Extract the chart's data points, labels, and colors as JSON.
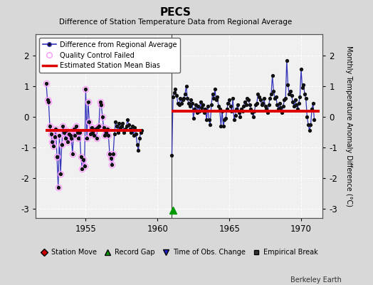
{
  "title": "PECS",
  "subtitle": "Difference of Station Temperature Data from Regional Average",
  "ylabel": "Monthly Temperature Anomaly Difference (°C)",
  "xlim": [
    1951.5,
    1971.5
  ],
  "ylim": [
    -3.3,
    2.7
  ],
  "yticks": [
    -3,
    -2,
    -1,
    0,
    1,
    2
  ],
  "xticks": [
    1955,
    1960,
    1965,
    1970
  ],
  "fig_bg_color": "#d8d8d8",
  "plot_bg_color": "#f0f0f0",
  "grid_color": "#ffffff",
  "line_color": "#3333bb",
  "marker_color": "#111111",
  "qc_color": "#ff99ff",
  "bias_color": "#dd0000",
  "gap_line_x": 1961.0,
  "segment1_bias": -0.45,
  "segment1_x_start": 1952.2,
  "segment1_x_end": 1958.9,
  "segment2_bias": 0.18,
  "segment2_x_start": 1961.0,
  "segment2_x_end": 1971.3,
  "record_gap_x": 1961.08,
  "record_gap_y": -3.05,
  "watermark": "Berkeley Earth",
  "segment1_data": [
    [
      1952.25,
      1.1
    ],
    [
      1952.333,
      0.55
    ],
    [
      1952.417,
      0.5
    ],
    [
      1952.5,
      -0.3
    ],
    [
      1952.583,
      -0.55
    ],
    [
      1952.667,
      -0.8
    ],
    [
      1952.75,
      -0.95
    ],
    [
      1952.833,
      -0.65
    ],
    [
      1952.917,
      -0.4
    ],
    [
      1953.0,
      -1.3
    ],
    [
      1953.083,
      -2.3
    ],
    [
      1953.167,
      -0.6
    ],
    [
      1953.25,
      -1.85
    ],
    [
      1953.333,
      -0.9
    ],
    [
      1953.417,
      -0.3
    ],
    [
      1953.5,
      -0.5
    ],
    [
      1953.583,
      -0.7
    ],
    [
      1953.667,
      -0.45
    ],
    [
      1953.75,
      -0.8
    ],
    [
      1953.833,
      -0.55
    ],
    [
      1953.917,
      -0.6
    ],
    [
      1954.0,
      -0.7
    ],
    [
      1954.083,
      -1.2
    ],
    [
      1954.167,
      -0.4
    ],
    [
      1954.25,
      -0.6
    ],
    [
      1954.333,
      -0.3
    ],
    [
      1954.417,
      -0.5
    ],
    [
      1954.5,
      -0.7
    ],
    [
      1954.583,
      -0.5
    ],
    [
      1954.667,
      -1.3
    ],
    [
      1954.75,
      -1.7
    ],
    [
      1954.833,
      -1.4
    ],
    [
      1954.917,
      -1.6
    ],
    [
      1955.0,
      0.9
    ],
    [
      1955.083,
      -0.7
    ],
    [
      1955.167,
      0.5
    ],
    [
      1955.25,
      -0.15
    ],
    [
      1955.333,
      -0.55
    ],
    [
      1955.417,
      -0.35
    ],
    [
      1955.5,
      -0.5
    ],
    [
      1955.583,
      -0.6
    ],
    [
      1955.667,
      -0.4
    ],
    [
      1955.75,
      -0.7
    ],
    [
      1955.833,
      -0.35
    ],
    [
      1955.917,
      -0.3
    ],
    [
      1956.0,
      0.5
    ],
    [
      1956.083,
      0.4
    ],
    [
      1956.167,
      0.0
    ],
    [
      1956.25,
      -0.35
    ],
    [
      1956.333,
      -0.6
    ],
    [
      1956.417,
      -0.5
    ],
    [
      1956.5,
      -0.4
    ],
    [
      1956.583,
      -0.6
    ],
    [
      1956.667,
      -1.2
    ],
    [
      1956.75,
      -1.35
    ],
    [
      1956.833,
      -1.55
    ],
    [
      1956.917,
      -1.2
    ],
    [
      1957.0,
      -0.55
    ],
    [
      1957.083,
      -0.15
    ],
    [
      1957.167,
      -0.3
    ],
    [
      1957.25,
      -0.5
    ],
    [
      1957.333,
      -0.2
    ],
    [
      1957.417,
      -0.35
    ],
    [
      1957.5,
      -0.3
    ],
    [
      1957.583,
      -0.2
    ],
    [
      1957.667,
      -0.5
    ],
    [
      1957.75,
      -0.4
    ],
    [
      1957.833,
      -0.3
    ],
    [
      1957.917,
      -0.1
    ],
    [
      1958.0,
      -0.25
    ],
    [
      1958.083,
      -0.4
    ],
    [
      1958.167,
      -0.5
    ],
    [
      1958.25,
      -0.3
    ],
    [
      1958.333,
      -0.6
    ],
    [
      1958.417,
      -0.35
    ],
    [
      1958.5,
      -0.55
    ],
    [
      1958.583,
      -0.9
    ],
    [
      1958.667,
      -1.1
    ],
    [
      1958.75,
      -0.7
    ],
    [
      1958.833,
      -0.5
    ],
    [
      1958.917,
      -0.45
    ]
  ],
  "qc_flags_seg1": [
    1,
    1,
    1,
    1,
    1,
    1,
    1,
    1,
    1,
    1,
    1,
    1,
    1,
    1,
    1,
    1,
    1,
    1,
    1,
    1,
    1,
    1,
    1,
    1,
    1,
    1,
    1,
    1,
    1,
    1,
    1,
    1,
    1,
    1,
    1,
    1,
    1,
    1,
    1,
    1,
    1,
    1,
    1,
    1,
    1,
    1,
    1,
    1,
    1,
    1,
    1,
    1,
    1,
    1,
    1,
    1,
    1,
    0,
    0,
    0,
    0,
    0,
    0,
    0,
    0,
    0,
    0,
    0,
    0,
    0,
    0,
    0,
    0,
    0,
    0,
    0,
    0,
    0,
    0,
    0,
    0
  ],
  "segment2_data": [
    [
      1961.0,
      -1.25
    ],
    [
      1961.083,
      0.65
    ],
    [
      1961.167,
      0.8
    ],
    [
      1961.25,
      0.9
    ],
    [
      1961.333,
      0.7
    ],
    [
      1961.417,
      0.45
    ],
    [
      1961.5,
      0.4
    ],
    [
      1961.583,
      0.6
    ],
    [
      1961.667,
      0.45
    ],
    [
      1961.75,
      0.55
    ],
    [
      1961.833,
      0.6
    ],
    [
      1961.917,
      0.75
    ],
    [
      1962.0,
      1.0
    ],
    [
      1962.083,
      0.6
    ],
    [
      1962.167,
      0.45
    ],
    [
      1962.25,
      0.35
    ],
    [
      1962.333,
      0.55
    ],
    [
      1962.417,
      0.45
    ],
    [
      1962.5,
      -0.05
    ],
    [
      1962.583,
      0.25
    ],
    [
      1962.667,
      0.4
    ],
    [
      1962.75,
      0.15
    ],
    [
      1962.833,
      0.35
    ],
    [
      1962.917,
      0.2
    ],
    [
      1963.0,
      0.5
    ],
    [
      1963.083,
      0.3
    ],
    [
      1963.167,
      0.4
    ],
    [
      1963.25,
      0.15
    ],
    [
      1963.333,
      0.25
    ],
    [
      1963.417,
      -0.1
    ],
    [
      1963.5,
      0.35
    ],
    [
      1963.583,
      -0.1
    ],
    [
      1963.667,
      -0.25
    ],
    [
      1963.75,
      0.4
    ],
    [
      1963.833,
      0.75
    ],
    [
      1963.917,
      0.6
    ],
    [
      1964.0,
      0.9
    ],
    [
      1964.083,
      0.55
    ],
    [
      1964.167,
      0.65
    ],
    [
      1964.25,
      0.35
    ],
    [
      1964.333,
      0.25
    ],
    [
      1964.417,
      -0.3
    ],
    [
      1964.5,
      0.2
    ],
    [
      1964.583,
      -0.3
    ],
    [
      1964.667,
      -0.1
    ],
    [
      1964.75,
      -0.05
    ],
    [
      1964.833,
      0.25
    ],
    [
      1964.917,
      0.45
    ],
    [
      1965.0,
      0.55
    ],
    [
      1965.083,
      0.35
    ],
    [
      1965.167,
      0.2
    ],
    [
      1965.25,
      0.6
    ],
    [
      1965.333,
      -0.1
    ],
    [
      1965.417,
      0.05
    ],
    [
      1965.5,
      0.25
    ],
    [
      1965.583,
      0.4
    ],
    [
      1965.667,
      0.15
    ],
    [
      1965.75,
      0.0
    ],
    [
      1965.833,
      0.25
    ],
    [
      1965.917,
      0.2
    ],
    [
      1966.0,
      0.35
    ],
    [
      1966.083,
      0.5
    ],
    [
      1966.167,
      0.4
    ],
    [
      1966.25,
      0.6
    ],
    [
      1966.333,
      0.55
    ],
    [
      1966.417,
      0.4
    ],
    [
      1966.5,
      0.25
    ],
    [
      1966.583,
      0.15
    ],
    [
      1966.667,
      0.0
    ],
    [
      1966.75,
      0.2
    ],
    [
      1966.833,
      0.4
    ],
    [
      1966.917,
      0.45
    ],
    [
      1967.0,
      0.75
    ],
    [
      1967.083,
      0.65
    ],
    [
      1967.167,
      0.55
    ],
    [
      1967.25,
      0.4
    ],
    [
      1967.333,
      0.45
    ],
    [
      1967.417,
      0.6
    ],
    [
      1967.5,
      0.35
    ],
    [
      1967.583,
      0.25
    ],
    [
      1967.667,
      0.15
    ],
    [
      1967.75,
      0.4
    ],
    [
      1967.833,
      0.6
    ],
    [
      1967.917,
      0.75
    ],
    [
      1968.0,
      1.35
    ],
    [
      1968.083,
      0.85
    ],
    [
      1968.167,
      0.6
    ],
    [
      1968.25,
      0.65
    ],
    [
      1968.333,
      0.4
    ],
    [
      1968.417,
      0.25
    ],
    [
      1968.5,
      0.45
    ],
    [
      1968.583,
      0.3
    ],
    [
      1968.667,
      0.15
    ],
    [
      1968.75,
      0.35
    ],
    [
      1968.833,
      0.55
    ],
    [
      1968.917,
      0.6
    ],
    [
      1969.0,
      1.85
    ],
    [
      1969.083,
      1.05
    ],
    [
      1969.167,
      0.75
    ],
    [
      1969.25,
      0.85
    ],
    [
      1969.333,
      0.7
    ],
    [
      1969.417,
      0.5
    ],
    [
      1969.5,
      0.35
    ],
    [
      1969.583,
      0.55
    ],
    [
      1969.667,
      0.4
    ],
    [
      1969.75,
      0.25
    ],
    [
      1969.833,
      0.45
    ],
    [
      1969.917,
      0.65
    ],
    [
      1970.0,
      1.55
    ],
    [
      1970.083,
      0.95
    ],
    [
      1970.167,
      1.05
    ],
    [
      1970.25,
      0.75
    ],
    [
      1970.333,
      0.6
    ],
    [
      1970.417,
      0.0
    ],
    [
      1970.5,
      -0.25
    ],
    [
      1970.583,
      -0.45
    ],
    [
      1970.667,
      -0.25
    ],
    [
      1970.75,
      0.25
    ],
    [
      1970.833,
      0.45
    ],
    [
      1970.917,
      -0.1
    ]
  ]
}
